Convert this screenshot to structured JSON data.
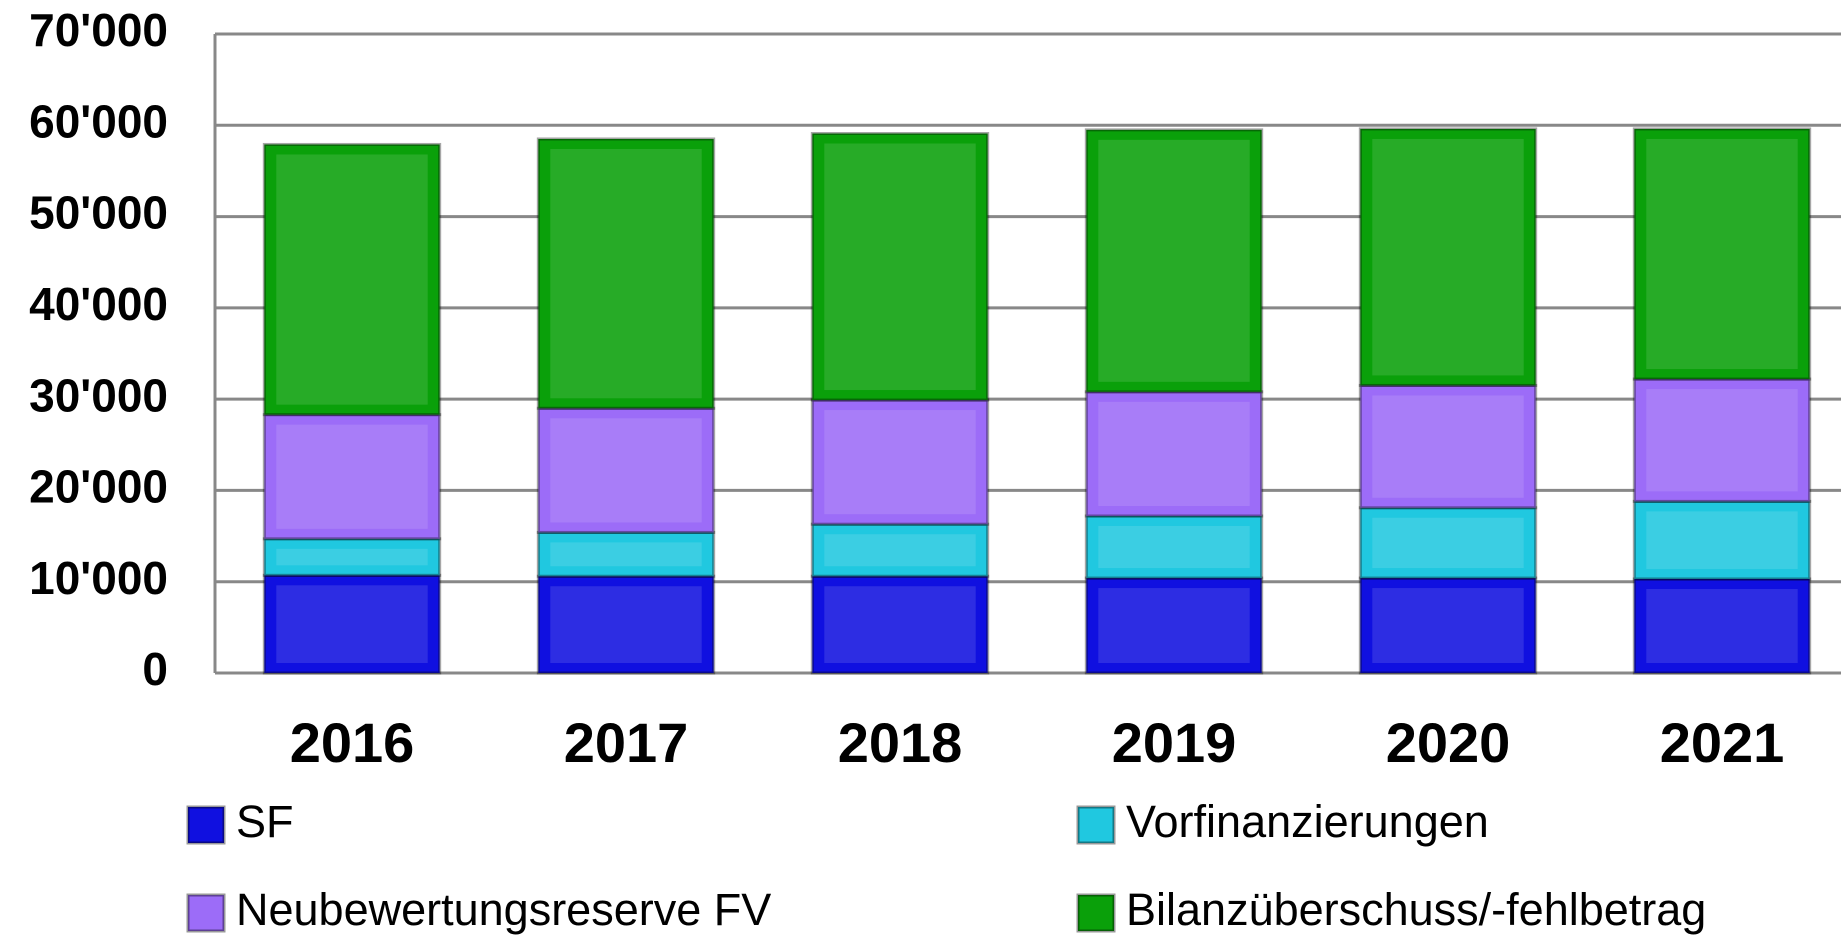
{
  "chart_data": {
    "type": "stacked_bar",
    "categories": [
      "2016",
      "2017",
      "2018",
      "2019",
      "2020",
      "2021"
    ],
    "series": [
      {
        "name": "SF",
        "color": "#1010e0",
        "values": [
          10700,
          10600,
          10600,
          10400,
          10400,
          10300
        ]
      },
      {
        "name": "Vorfinanzierungen",
        "color": "#20c8e0",
        "values": [
          4000,
          4800,
          5700,
          6800,
          7700,
          8500
        ]
      },
      {
        "name": "Neubewertungsreserve FV",
        "color": "#9c6cf8",
        "values": [
          13600,
          13600,
          13600,
          13600,
          13400,
          13400
        ]
      },
      {
        "name": "Bilanzüberschuss/-fehlbetrag",
        "color": "#0aa00a",
        "values": [
          29600,
          29500,
          29200,
          28700,
          28100,
          27400
        ]
      }
    ],
    "ylim": [
      0,
      70000
    ],
    "yticks": [
      0,
      {
        "value": 10000,
        "label": "10'000"
      },
      {
        "value": 20000,
        "label": "20'000"
      },
      {
        "value": 30000,
        "label": "30'000"
      },
      {
        "value": 40000,
        "label": "40'000"
      },
      {
        "value": 50000,
        "label": "50'000"
      },
      {
        "value": 60000,
        "label": "60'000"
      },
      {
        "value": 70000,
        "label": "70'000"
      }
    ],
    "grid": true,
    "legend": "bottom"
  }
}
